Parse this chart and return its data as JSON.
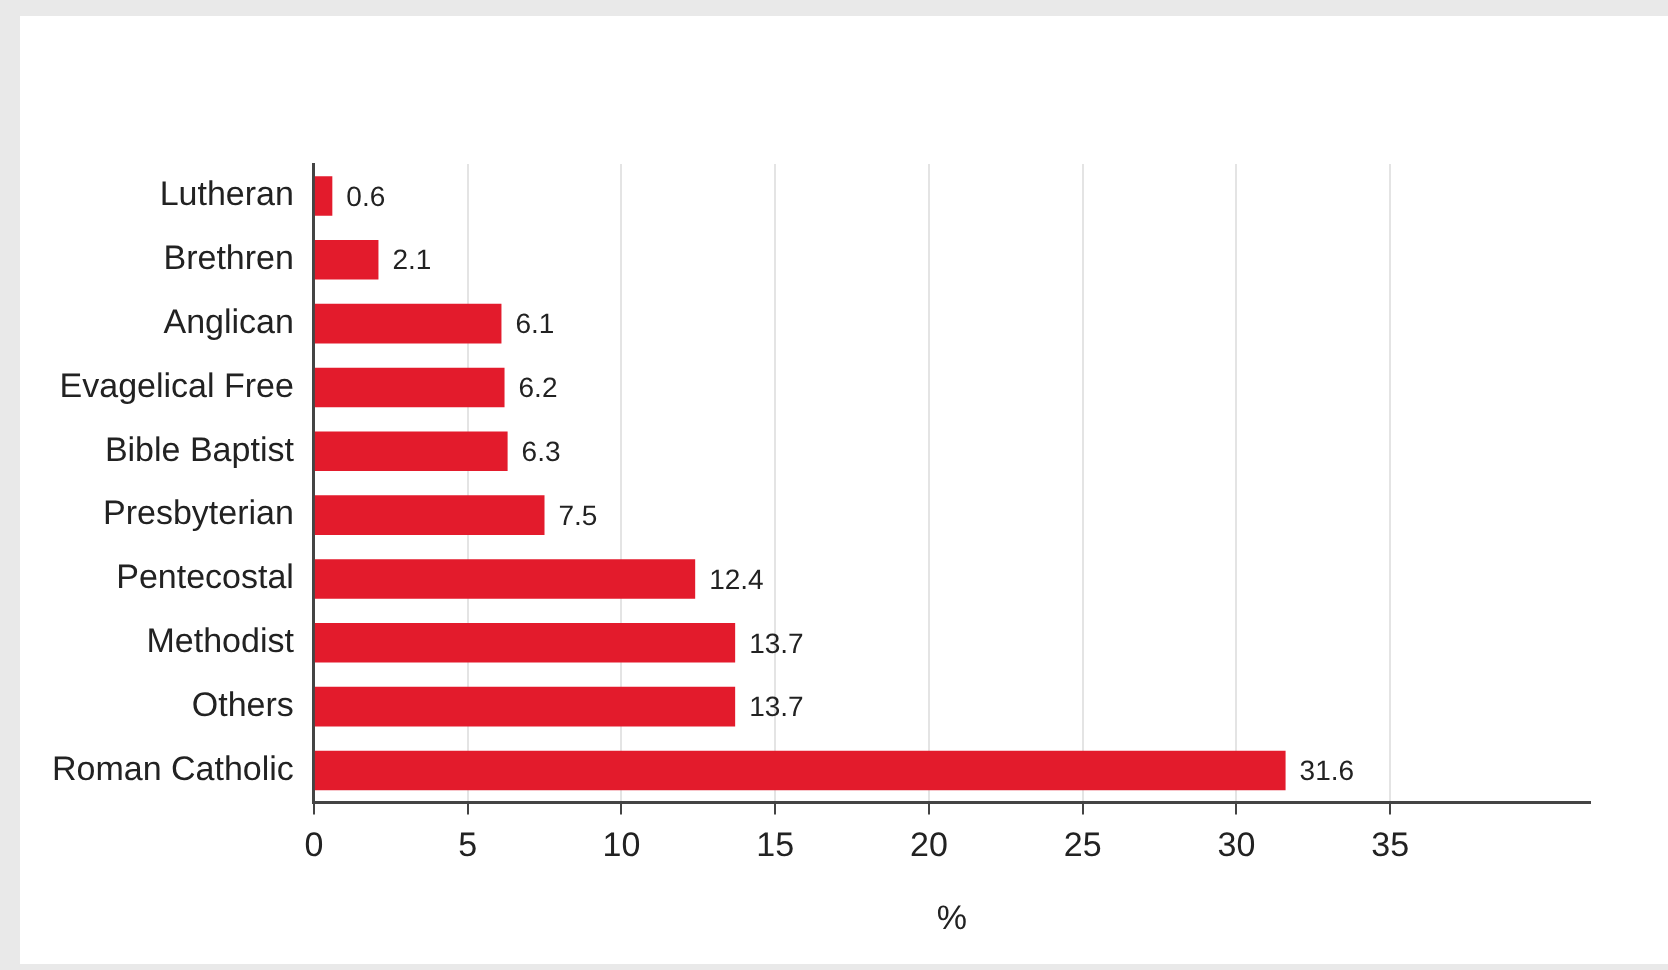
{
  "chart_data": {
    "type": "bar",
    "orientation": "horizontal",
    "xlabel": "%",
    "categories": [
      "Lutheran",
      "Brethren",
      "Anglican",
      "Evagelical Free",
      "Bible Baptist",
      "Presbyterian",
      "Pentecostal",
      "Methodist",
      "Others",
      "Roman Catholic"
    ],
    "values": [
      0.6,
      2.1,
      6.1,
      6.2,
      6.3,
      7.5,
      12.4,
      13.7,
      13.7,
      31.6
    ],
    "color": "#e31b2c",
    "xlim": [
      0,
      41.5
    ],
    "xticks": [
      0,
      5,
      10,
      15,
      20,
      25,
      30,
      35
    ],
    "grid": "x",
    "data_labels": true
  }
}
